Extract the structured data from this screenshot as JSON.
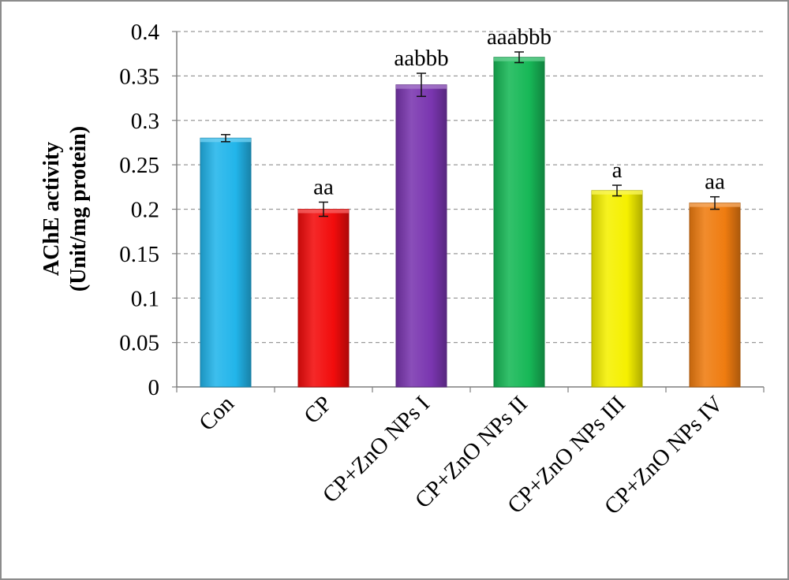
{
  "chart_data": {
    "type": "bar",
    "title": "",
    "xlabel": "",
    "ylabel_line1": "AChE activity",
    "ylabel_line2": "(Unit/mg protein)",
    "ylim": [
      0,
      0.4
    ],
    "yticks": [
      "0",
      "0.05",
      "0.1",
      "0.15",
      "0.2",
      "0.25",
      "0.3",
      "0.35",
      "0.4"
    ],
    "grid": true,
    "legend": false,
    "categories": [
      "Con",
      "CP",
      "CP+ZnO NPs I",
      "CP+ZnO NPs II",
      "CP+ZnO NPs III",
      "CP+ZnO NPs IV"
    ],
    "series": [
      {
        "values": [
          0.28,
          0.2,
          0.34,
          0.371,
          0.221,
          0.207
        ],
        "errors": [
          0.004,
          0.008,
          0.013,
          0.006,
          0.006,
          0.007
        ],
        "colors": [
          "#22b5ea",
          "#f20c0c",
          "#7a36b0",
          "#17b857",
          "#f5f000",
          "#ef7c10"
        ],
        "annotations": [
          "",
          "aa",
          "aabbb",
          "aaabbb",
          "a",
          "aa"
        ]
      }
    ]
  }
}
